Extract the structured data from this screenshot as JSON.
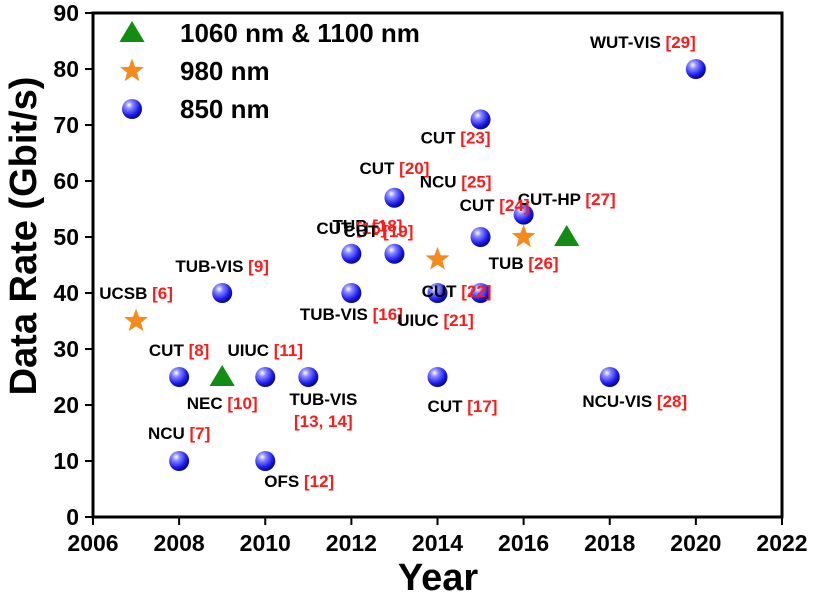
{
  "chart_data": {
    "type": "scatter",
    "xlabel": "Year",
    "ylabel": "Data Rate (Gbit/s)",
    "xlim": [
      2006,
      2022
    ],
    "ylim": [
      0,
      90
    ],
    "x_ticks": [
      "2006",
      "2008",
      "2010",
      "2012",
      "2014",
      "2016",
      "2018",
      "2020",
      "2022"
    ],
    "y_ticks": [
      "0",
      "10",
      "20",
      "30",
      "40",
      "50",
      "60",
      "70",
      "80",
      "90"
    ],
    "grid": false,
    "legend_position": "top-left",
    "colors": {
      "1060 nm & 1100 nm": "#128c12",
      "980 nm": "#f58a1f",
      "850 nm": "#1a1aee",
      "label_name": "#000000",
      "label_ref": "#ff1a1a"
    },
    "series": [
      {
        "name": "1060 nm & 1100 nm",
        "marker": "triangle",
        "points": [
          {
            "x": 2009,
            "y": 25,
            "label_name": "NEC",
            "label_ref": "[10]"
          },
          {
            "x": 2017,
            "y": 50,
            "label_name": "CUT-HP",
            "label_ref": "[27]"
          }
        ]
      },
      {
        "name": "980 nm",
        "marker": "star",
        "points": [
          {
            "x": 2007,
            "y": 35,
            "label_name": "UCSB",
            "label_ref": "[6]"
          },
          {
            "x": 2014,
            "y": 46,
            "label_name": "TUB",
            "label_ref": "[18]"
          },
          {
            "x": 2016,
            "y": 50,
            "label_name": "TUB",
            "label_ref": "[26]"
          }
        ]
      },
      {
        "name": "850 nm",
        "marker": "sphere",
        "points": [
          {
            "x": 2008,
            "y": 10,
            "label_name": "NCU",
            "label_ref": "[7]"
          },
          {
            "x": 2008,
            "y": 25,
            "label_name": "CUT",
            "label_ref": "[8]"
          },
          {
            "x": 2009,
            "y": 40,
            "label_name": "TUB-VIS",
            "label_ref": "[9]"
          },
          {
            "x": 2010,
            "y": 25,
            "label_name": "UIUC",
            "label_ref": "[11]"
          },
          {
            "x": 2010,
            "y": 10,
            "label_name": "OFS",
            "label_ref": "[12]"
          },
          {
            "x": 2011,
            "y": 25,
            "label_name": "TUB-VIS",
            "label_ref": "[13, 14]"
          },
          {
            "x": 2012,
            "y": 47,
            "label_name": "CUT",
            "label_ref": "[15]"
          },
          {
            "x": 2012,
            "y": 40,
            "label_name": "TUB-VIS",
            "label_ref": "[16]"
          },
          {
            "x": 2014,
            "y": 25,
            "label_name": "CUT",
            "label_ref": "[17]"
          },
          {
            "x": 2013,
            "y": 47,
            "label_name": "CUT",
            "label_ref": "[19]"
          },
          {
            "x": 2013,
            "y": 57,
            "label_name": "CUT",
            "label_ref": "[20]"
          },
          {
            "x": 2014,
            "y": 40,
            "label_name": "UIUC",
            "label_ref": "[21]"
          },
          {
            "x": 2015,
            "y": 40,
            "label_name": "CUT",
            "label_ref": "[22]"
          },
          {
            "x": 2015,
            "y": 71,
            "label_name": "CUT",
            "label_ref": "[23]"
          },
          {
            "x": 2015,
            "y": 50,
            "label_name": "CUT",
            "label_ref": "[24]"
          },
          {
            "x": 2016,
            "y": 54,
            "label_name": "NCU",
            "label_ref": "[25]"
          },
          {
            "x": 2018,
            "y": 25,
            "label_name": "NCU-VIS",
            "label_ref": "[28]"
          },
          {
            "x": 2020,
            "y": 80,
            "label_name": "WUT-VIS",
            "label_ref": "[29]"
          }
        ]
      }
    ]
  }
}
